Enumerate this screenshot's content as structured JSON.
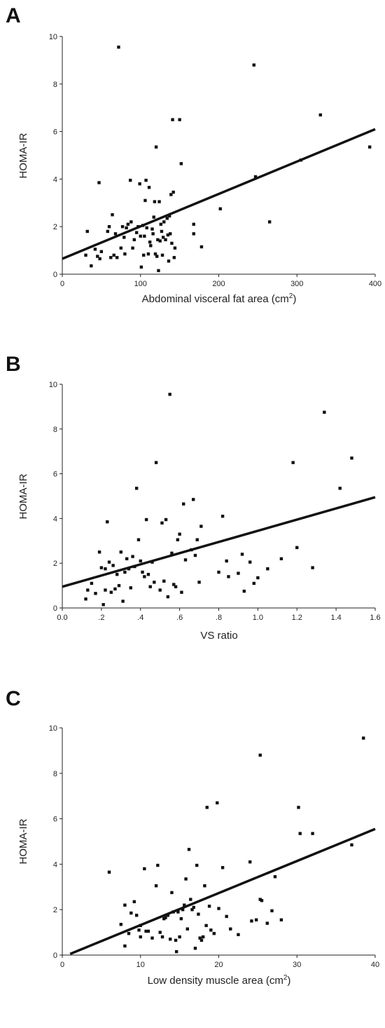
{
  "chart_data": [
    {
      "panel": "A",
      "type": "scatter",
      "xlabel": "Abdominal visceral fat area (cm",
      "xlabel_sup": "2",
      "xlabel_close": ")",
      "ylabel": "HOMA-IR",
      "xlim": [
        0,
        400
      ],
      "ylim": [
        0,
        10
      ],
      "xticks": [
        0,
        100,
        200,
        300,
        400
      ],
      "xtick_labels": [
        "0",
        "100",
        "200",
        "300",
        "400"
      ],
      "yticks": [
        0,
        2,
        4,
        6,
        8,
        10
      ],
      "ytick_labels": [
        "0",
        "2",
        "4",
        "6",
        "8",
        "10"
      ],
      "fit_line": [
        [
          0,
          0.65
        ],
        [
          400,
          6.1
        ]
      ],
      "points": [
        [
          30,
          0.8
        ],
        [
          32,
          1.8
        ],
        [
          37,
          0.35
        ],
        [
          42,
          1.05
        ],
        [
          45,
          0.75
        ],
        [
          47,
          3.85
        ],
        [
          48,
          0.65
        ],
        [
          50,
          0.95
        ],
        [
          58,
          1.8
        ],
        [
          60,
          2.0
        ],
        [
          62,
          0.7
        ],
        [
          64,
          2.5
        ],
        [
          66,
          0.8
        ],
        [
          68,
          1.7
        ],
        [
          70,
          0.7
        ],
        [
          72,
          9.55
        ],
        [
          75,
          1.1
        ],
        [
          77,
          2.0
        ],
        [
          79,
          1.55
        ],
        [
          80,
          0.85
        ],
        [
          82,
          1.95
        ],
        [
          84,
          2.1
        ],
        [
          87,
          3.95
        ],
        [
          88,
          2.2
        ],
        [
          90,
          1.1
        ],
        [
          92,
          1.45
        ],
        [
          95,
          1.75
        ],
        [
          97,
          2.0
        ],
        [
          99,
          3.8
        ],
        [
          100,
          1.6
        ],
        [
          101,
          0.3
        ],
        [
          103,
          2.05
        ],
        [
          104,
          0.8
        ],
        [
          105,
          1.6
        ],
        [
          106,
          3.1
        ],
        [
          107,
          3.95
        ],
        [
          108,
          1.95
        ],
        [
          110,
          0.85
        ],
        [
          111,
          3.65
        ],
        [
          112,
          1.35
        ],
        [
          113,
          1.2
        ],
        [
          115,
          1.9
        ],
        [
          116,
          1.7
        ],
        [
          117,
          2.4
        ],
        [
          118,
          3.05
        ],
        [
          119,
          0.85
        ],
        [
          120,
          5.35
        ],
        [
          121,
          0.75
        ],
        [
          122,
          1.45
        ],
        [
          123,
          0.15
        ],
        [
          124,
          3.05
        ],
        [
          125,
          1.4
        ],
        [
          126,
          2.1
        ],
        [
          127,
          1.8
        ],
        [
          128,
          0.8
        ],
        [
          129,
          1.55
        ],
        [
          130,
          2.2
        ],
        [
          132,
          1.45
        ],
        [
          134,
          2.35
        ],
        [
          135,
          1.65
        ],
        [
          136,
          0.55
        ],
        [
          137,
          2.45
        ],
        [
          138,
          1.7
        ],
        [
          139,
          3.35
        ],
        [
          140,
          1.3
        ],
        [
          141,
          6.5
        ],
        [
          142,
          3.45
        ],
        [
          143,
          0.7
        ],
        [
          144,
          1.1
        ],
        [
          150,
          6.5
        ],
        [
          152,
          4.65
        ],
        [
          168,
          1.7
        ],
        [
          168,
          2.1
        ],
        [
          178,
          1.15
        ],
        [
          202,
          2.75
        ],
        [
          245,
          8.8
        ],
        [
          247,
          4.1
        ],
        [
          265,
          2.2
        ],
        [
          305,
          4.8
        ],
        [
          330,
          6.7
        ],
        [
          393,
          5.35
        ]
      ]
    },
    {
      "panel": "B",
      "type": "scatter",
      "xlabel": "VS ratio",
      "ylabel": "HOMA-IR",
      "xlim": [
        0,
        1.6
      ],
      "ylim": [
        0,
        10
      ],
      "xticks": [
        0,
        0.2,
        0.4,
        0.6,
        0.8,
        1.0,
        1.2,
        1.4,
        1.6
      ],
      "xtick_labels": [
        "0.0",
        ".2",
        ".4",
        ".6",
        ".8",
        "1.0",
        "1.2",
        "1.4",
        "1.6"
      ],
      "yticks": [
        0,
        2,
        4,
        6,
        8,
        10
      ],
      "ytick_labels": [
        "0",
        "2",
        "4",
        "6",
        "8",
        "10"
      ],
      "fit_line": [
        [
          0,
          0.95
        ],
        [
          1.6,
          4.95
        ]
      ],
      "points": [
        [
          0.12,
          0.4
        ],
        [
          0.13,
          0.8
        ],
        [
          0.15,
          1.1
        ],
        [
          0.17,
          0.65
        ],
        [
          0.19,
          2.5
        ],
        [
          0.2,
          1.8
        ],
        [
          0.21,
          0.15
        ],
        [
          0.22,
          0.8
        ],
        [
          0.22,
          1.75
        ],
        [
          0.23,
          3.85
        ],
        [
          0.24,
          2.05
        ],
        [
          0.25,
          0.7
        ],
        [
          0.26,
          1.9
        ],
        [
          0.27,
          0.85
        ],
        [
          0.28,
          1.5
        ],
        [
          0.29,
          1.0
        ],
        [
          0.3,
          2.5
        ],
        [
          0.31,
          0.3
        ],
        [
          0.32,
          1.6
        ],
        [
          0.33,
          2.2
        ],
        [
          0.34,
          1.75
        ],
        [
          0.35,
          0.9
        ],
        [
          0.36,
          2.3
        ],
        [
          0.37,
          1.85
        ],
        [
          0.38,
          5.35
        ],
        [
          0.39,
          3.05
        ],
        [
          0.4,
          2.1
        ],
        [
          0.41,
          1.6
        ],
        [
          0.42,
          1.4
        ],
        [
          0.43,
          3.95
        ],
        [
          0.44,
          1.5
        ],
        [
          0.45,
          0.95
        ],
        [
          0.46,
          2.05
        ],
        [
          0.47,
          1.15
        ],
        [
          0.48,
          6.5
        ],
        [
          0.5,
          0.8
        ],
        [
          0.51,
          3.8
        ],
        [
          0.52,
          1.2
        ],
        [
          0.53,
          3.95
        ],
        [
          0.54,
          0.5
        ],
        [
          0.55,
          9.55
        ],
        [
          0.56,
          2.45
        ],
        [
          0.57,
          1.05
        ],
        [
          0.58,
          0.95
        ],
        [
          0.59,
          3.05
        ],
        [
          0.6,
          3.3
        ],
        [
          0.61,
          0.7
        ],
        [
          0.62,
          4.65
        ],
        [
          0.63,
          2.15
        ],
        [
          0.66,
          2.6
        ],
        [
          0.67,
          4.85
        ],
        [
          0.68,
          2.35
        ],
        [
          0.69,
          3.05
        ],
        [
          0.7,
          1.15
        ],
        [
          0.71,
          3.65
        ],
        [
          0.8,
          1.6
        ],
        [
          0.82,
          4.1
        ],
        [
          0.84,
          2.1
        ],
        [
          0.85,
          1.4
        ],
        [
          0.9,
          1.55
        ],
        [
          0.92,
          2.4
        ],
        [
          0.93,
          0.75
        ],
        [
          0.96,
          2.05
        ],
        [
          0.98,
          1.1
        ],
        [
          1.0,
          1.35
        ],
        [
          1.05,
          1.75
        ],
        [
          1.12,
          2.2
        ],
        [
          1.18,
          6.5
        ],
        [
          1.2,
          2.7
        ],
        [
          1.28,
          1.8
        ],
        [
          1.34,
          8.75
        ],
        [
          1.42,
          5.35
        ],
        [
          1.48,
          6.7
        ]
      ]
    },
    {
      "panel": "C",
      "type": "scatter",
      "xlabel": "Low density muscle area (cm",
      "xlabel_sup": "2",
      "xlabel_close": ")",
      "ylabel": "HOMA-IR",
      "xlim": [
        0,
        40
      ],
      "ylim": [
        0,
        10
      ],
      "xticks": [
        0,
        10,
        20,
        30,
        40
      ],
      "xtick_labels": [
        "0",
        "10",
        "20",
        "30",
        "40"
      ],
      "yticks": [
        0,
        2,
        4,
        6,
        8,
        10
      ],
      "ytick_labels": [
        "0",
        "2",
        "4",
        "6",
        "8",
        "10"
      ],
      "fit_line": [
        [
          1,
          0.05
        ],
        [
          40,
          5.55
        ]
      ],
      "points": [
        [
          6,
          3.65
        ],
        [
          7.5,
          1.35
        ],
        [
          8,
          0.4
        ],
        [
          8,
          2.2
        ],
        [
          8.5,
          0.95
        ],
        [
          8.8,
          1.85
        ],
        [
          9.2,
          2.35
        ],
        [
          9.5,
          1.75
        ],
        [
          9.8,
          1.1
        ],
        [
          10,
          0.8
        ],
        [
          10,
          1.3
        ],
        [
          10.5,
          3.8
        ],
        [
          10.7,
          1.05
        ],
        [
          11,
          1.05
        ],
        [
          11.5,
          0.75
        ],
        [
          12,
          3.05
        ],
        [
          12.2,
          3.95
        ],
        [
          12.5,
          1.0
        ],
        [
          12.8,
          0.8
        ],
        [
          13,
          1.6
        ],
        [
          13.2,
          1.65
        ],
        [
          13.5,
          1.75
        ],
        [
          13.8,
          0.7
        ],
        [
          14,
          2.75
        ],
        [
          14.2,
          1.9
        ],
        [
          14.5,
          0.65
        ],
        [
          14.6,
          0.15
        ],
        [
          14.8,
          1.9
        ],
        [
          15,
          0.8
        ],
        [
          15.2,
          1.6
        ],
        [
          15.4,
          2.0
        ],
        [
          15.6,
          2.2
        ],
        [
          15.8,
          3.35
        ],
        [
          16,
          1.15
        ],
        [
          16.2,
          4.65
        ],
        [
          16.4,
          2.45
        ],
        [
          16.6,
          2.0
        ],
        [
          16.8,
          2.1
        ],
        [
          17,
          0.3
        ],
        [
          17.2,
          3.95
        ],
        [
          17.4,
          1.8
        ],
        [
          17.6,
          0.75
        ],
        [
          17.8,
          0.65
        ],
        [
          18,
          0.8
        ],
        [
          18.2,
          3.05
        ],
        [
          18.4,
          1.3
        ],
        [
          18.5,
          6.5
        ],
        [
          18.8,
          2.15
        ],
        [
          19,
          1.1
        ],
        [
          19.4,
          0.95
        ],
        [
          19.8,
          6.7
        ],
        [
          20,
          2.05
        ],
        [
          20.5,
          3.85
        ],
        [
          21,
          1.7
        ],
        [
          21.5,
          1.15
        ],
        [
          22.5,
          0.9
        ],
        [
          24,
          4.1
        ],
        [
          24.2,
          1.5
        ],
        [
          24.8,
          1.55
        ],
        [
          25.3,
          8.8
        ],
        [
          25.3,
          2.45
        ],
        [
          25.5,
          2.4
        ],
        [
          26.2,
          1.4
        ],
        [
          26.8,
          1.95
        ],
        [
          27.2,
          3.45
        ],
        [
          28,
          1.55
        ],
        [
          30.2,
          6.5
        ],
        [
          30.4,
          5.35
        ],
        [
          32,
          5.35
        ],
        [
          37,
          4.85
        ],
        [
          38.5,
          9.55
        ]
      ]
    }
  ]
}
